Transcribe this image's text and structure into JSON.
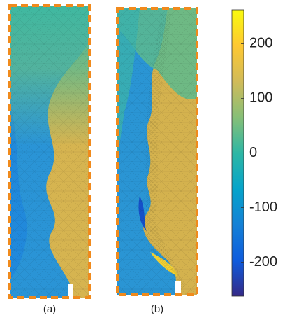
{
  "chart_data": {
    "type": "field",
    "panels": [
      "(a)",
      "(b)"
    ],
    "colorbar": {
      "lim": [
        -262,
        262
      ],
      "ticks": [
        200,
        100,
        0,
        -100,
        -200
      ],
      "colormap": [
        "#352a87",
        "#0f5cdd",
        "#1481d6",
        "#06a4ca",
        "#2eb7a4",
        "#87bf77",
        "#d1bb59",
        "#fec832",
        "#f9fb0e"
      ]
    }
  }
}
